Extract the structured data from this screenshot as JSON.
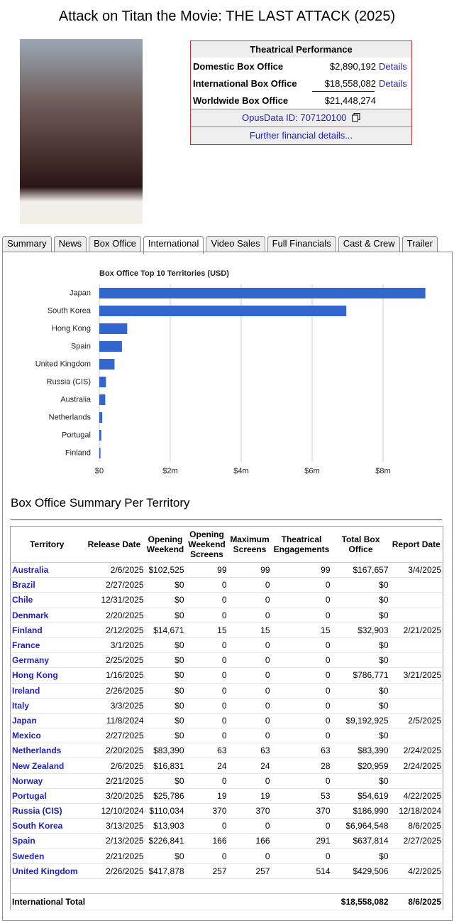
{
  "header": {
    "title": "Attack on Titan the Movie: THE LAST ATTACK (2025)"
  },
  "performance": {
    "title": "Theatrical Performance",
    "rows": [
      [
        "Domestic Box Office",
        "$2,890,192",
        "Details"
      ],
      [
        "International Box Office",
        "$18,558,082",
        "Details"
      ],
      [
        "Worldwide Box Office",
        "$21,448,274"
      ]
    ],
    "opusdata": "OpusData ID: 707120100",
    "further": "Further financial details..."
  },
  "tabs": [
    "Summary",
    "News",
    "Box Office",
    "International",
    "Video Sales",
    "Full Financials",
    "Cast & Crew",
    "Trailer"
  ],
  "active_tab": 3,
  "chart_data": {
    "type": "bar",
    "orientation": "horizontal",
    "title": "Box Office Top 10 Territories (USD)",
    "categories": [
      "Japan",
      "South Korea",
      "Hong Kong",
      "Spain",
      "United Kingdom",
      "Russia (CIS)",
      "Australia",
      "Netherlands",
      "Portugal",
      "Finland"
    ],
    "values": [
      9192925,
      6964548,
      786771,
      637814,
      429506,
      186990,
      167657,
      83390,
      54619,
      32903
    ],
    "color": "#3366cc",
    "xlim": [
      0,
      9500000
    ],
    "xticks": [
      {
        "value": 0,
        "label": "$0"
      },
      {
        "value": 2000000,
        "label": "$2m"
      },
      {
        "value": 4000000,
        "label": "$4m"
      },
      {
        "value": 6000000,
        "label": "$6m"
      },
      {
        "value": 8000000,
        "label": "$8m"
      }
    ],
    "grid": true
  },
  "table": {
    "title": "Box Office Summary Per Territory",
    "columns": [
      "Territory",
      "Release Date",
      "Opening Weekend",
      "Opening Weekend Screens",
      "Maximum Screens",
      "Theatrical Engagements",
      "Total Box Office",
      "Report Date"
    ],
    "rows": [
      [
        "Australia",
        "2/6/2025",
        "$102,525",
        "99",
        "99",
        "99",
        "$167,657",
        "3/4/2025"
      ],
      [
        "Brazil",
        "2/27/2025",
        "$0",
        "0",
        "0",
        "0",
        "$0",
        null
      ],
      [
        "Chile",
        "12/31/2025",
        "$0",
        "0",
        "0",
        "0",
        "$0",
        null
      ],
      [
        "Denmark",
        "2/20/2025",
        "$0",
        "0",
        "0",
        "0",
        "$0",
        null
      ],
      [
        "Finland",
        "2/12/2025",
        "$14,671",
        "15",
        "15",
        "15",
        "$32,903",
        "2/21/2025"
      ],
      [
        "France",
        "3/1/2025",
        "$0",
        "0",
        "0",
        "0",
        "$0",
        null
      ],
      [
        "Germany",
        "2/25/2025",
        "$0",
        "0",
        "0",
        "0",
        "$0",
        null
      ],
      [
        "Hong Kong",
        "1/16/2025",
        "$0",
        "0",
        "0",
        "0",
        "$786,771",
        "3/21/2025"
      ],
      [
        "Ireland",
        "2/26/2025",
        "$0",
        "0",
        "0",
        "0",
        "$0",
        null
      ],
      [
        "Italy",
        "3/3/2025",
        "$0",
        "0",
        "0",
        "0",
        "$0",
        null
      ],
      [
        "Japan",
        "11/8/2024",
        "$0",
        "0",
        "0",
        "0",
        "$9,192,925",
        "2/5/2025"
      ],
      [
        "Mexico",
        "2/27/2025",
        "$0",
        "0",
        "0",
        "0",
        "$0",
        null
      ],
      [
        "Netherlands",
        "2/20/2025",
        "$83,390",
        "63",
        "63",
        "63",
        "$83,390",
        "2/24/2025"
      ],
      [
        "New Zealand",
        "2/6/2025",
        "$16,831",
        "24",
        "24",
        "28",
        "$20,959",
        "2/24/2025"
      ],
      [
        "Norway",
        "2/21/2025",
        "$0",
        "0",
        "0",
        "0",
        "$0",
        null
      ],
      [
        "Portugal",
        "3/20/2025",
        "$25,786",
        "19",
        "19",
        "53",
        "$54,619",
        "4/22/2025"
      ],
      [
        "Russia (CIS)",
        "12/10/2024",
        "$110,034",
        "370",
        "370",
        "370",
        "$186,990",
        "12/18/2024"
      ],
      [
        "South Korea",
        "3/13/2025",
        "$13,903",
        "0",
        "0",
        "0",
        "$6,964,548",
        "8/6/2025"
      ],
      [
        "Spain",
        "2/13/2025",
        "$226,841",
        "166",
        "166",
        "291",
        "$637,814",
        "2/27/2025"
      ],
      [
        "Sweden",
        "2/21/2025",
        "$0",
        "0",
        "0",
        "0",
        "$0",
        null
      ],
      [
        "United Kingdom",
        "2/26/2025",
        "$417,878",
        "257",
        "257",
        "514",
        "$429,506",
        "4/2/2025"
      ]
    ],
    "total": {
      "label": "International Total",
      "value": "$18,558,082",
      "date": "8/6/2025"
    }
  }
}
